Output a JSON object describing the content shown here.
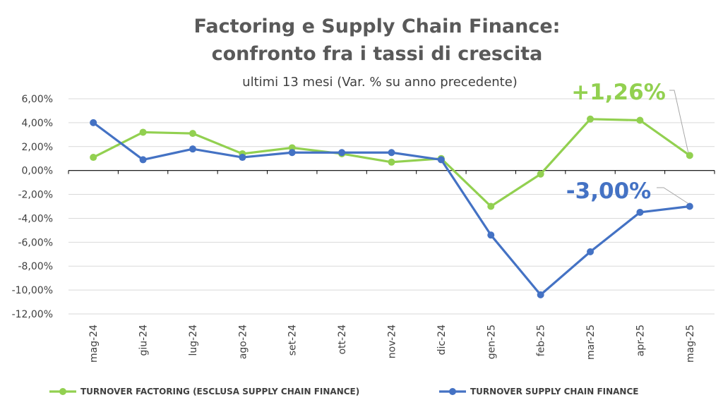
{
  "chart_data": {
    "type": "line",
    "title_line1": "Factoring e Supply Chain Finance:",
    "title_line2": "confronto fra i tassi di crescita",
    "subtitle": "ultimi 13 mesi (Var. % su anno precedente)",
    "categories": [
      "mag-24",
      "giu-24",
      "lug-24",
      "ago-24",
      "set-24",
      "ott-24",
      "nov-24",
      "dic-24",
      "gen-25",
      "feb-25",
      "mar-25",
      "apr-25",
      "mag-25"
    ],
    "y_ticks": [
      "6,00%",
      "4,00%",
      "2,00%",
      "0,00%",
      "-2,00%",
      "-4,00%",
      "-6,00%",
      "-8,00%",
      "-10,00%",
      "-12,00%"
    ],
    "ylim": [
      -12,
      6
    ],
    "grid": true,
    "legend_position": "bottom",
    "series": [
      {
        "name": "TURNOVER FACTORING (ESCLUSA SUPPLY CHAIN FINANCE)",
        "color": "#92D050",
        "values": [
          1.1,
          3.2,
          3.1,
          1.4,
          1.9,
          1.4,
          0.7,
          1.0,
          -3.0,
          -0.3,
          4.3,
          4.2,
          1.26
        ]
      },
      {
        "name": "TURNOVER SUPPLY CHAIN FINANCE",
        "color": "#4472C4",
        "values": [
          4.0,
          0.9,
          1.8,
          1.1,
          1.5,
          1.5,
          1.5,
          0.9,
          -5.4,
          -10.4,
          -6.8,
          -3.5,
          -3.0
        ]
      }
    ],
    "annotations": [
      {
        "text": "+1,26%",
        "series": 0,
        "point": 12,
        "color": "#92D050"
      },
      {
        "text": "-3,00%",
        "series": 1,
        "point": 12,
        "color": "#4472C4"
      }
    ]
  }
}
